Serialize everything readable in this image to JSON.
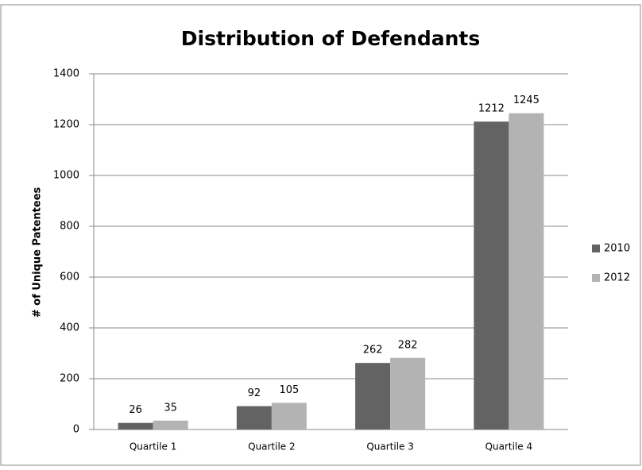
{
  "chart_data": {
    "type": "bar",
    "title": "Distribution of Defendants",
    "y_label": "# of Unique Patentees",
    "categories": [
      "Quartile 1",
      "Quartile 2",
      "Quartile 3",
      "Quartile 4"
    ],
    "series": [
      {
        "name": "2010",
        "color": "#636363",
        "values": [
          26,
          92,
          262,
          1212
        ]
      },
      {
        "name": "2012",
        "color": "#b3b3b3",
        "values": [
          35,
          105,
          282,
          1245
        ]
      }
    ],
    "ylim": [
      0,
      1400
    ],
    "yticks": [
      0,
      200,
      400,
      600,
      800,
      1000,
      1200,
      1400
    ],
    "grid": true,
    "legend": "right",
    "data_labels": true
  }
}
